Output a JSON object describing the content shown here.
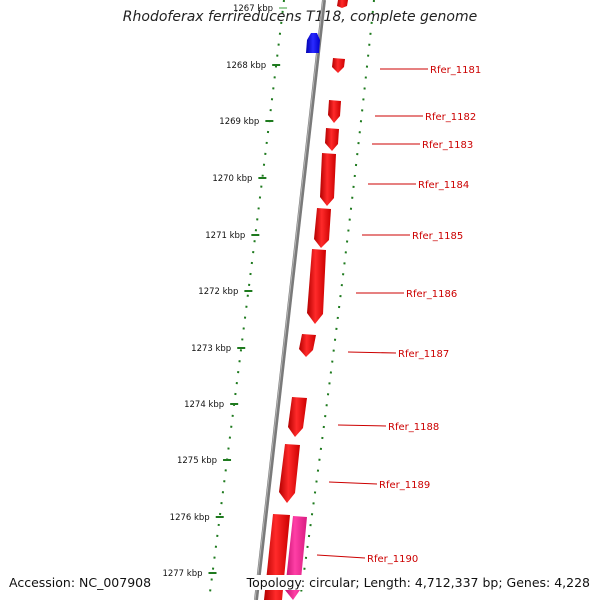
{
  "title": "Rhodoferax ferrireducens T118, complete genome",
  "footer": {
    "accession": "Accession: NC_007908",
    "summary": "Topology: circular; Length: 4,712,337 bp; Genes: 4,228"
  },
  "colors": {
    "backbone": "#7a7a7a",
    "tick": "#1e7a1e",
    "gene_forward": "#ff0000",
    "gene_forward_dark": "#b30000",
    "gene_reverse": "#0000ff",
    "gene_other": "#ff1493",
    "label": "#cc0000"
  },
  "ticks": [
    {
      "label": "1267 kbp",
      "faded": true
    },
    {
      "label": "1268 kbp"
    },
    {
      "label": "1269 kbp"
    },
    {
      "label": "1270 kbp"
    },
    {
      "label": "1271 kbp"
    },
    {
      "label": "1272 kbp"
    },
    {
      "label": "1273 kbp"
    },
    {
      "label": "1274 kbp"
    },
    {
      "label": "1275 kbp"
    },
    {
      "label": "1276 kbp"
    },
    {
      "label": "1277 kbp"
    }
  ],
  "gene_labels": [
    "Rfer_1181",
    "Rfer_1182",
    "Rfer_1183",
    "Rfer_1184",
    "Rfer_1185",
    "Rfer_1186",
    "Rfer_1187",
    "Rfer_1188",
    "Rfer_1189",
    "Rfer_1190"
  ]
}
